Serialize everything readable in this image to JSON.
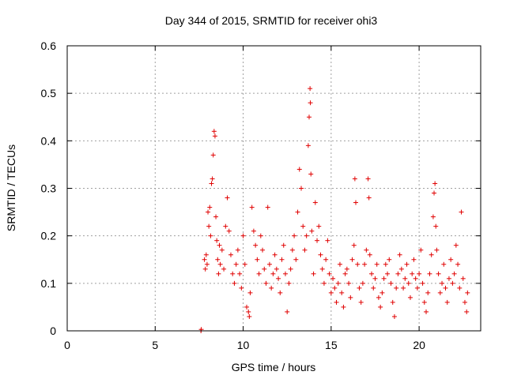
{
  "chart_data": {
    "type": "scatter",
    "title": "Day 344 of 2015, SRMTID for receiver ohi3",
    "xlabel": "GPS time / hours",
    "ylabel": "SRMTID / TECUs",
    "xlim": [
      0,
      23.5
    ],
    "ylim": [
      0,
      0.6
    ],
    "xticks": [
      0,
      5,
      10,
      15,
      20
    ],
    "yticks": [
      0,
      0.1,
      0.2,
      0.3,
      0.4,
      0.5,
      0.6
    ],
    "grid": true,
    "marker": "plus",
    "color": "#e00000",
    "series": [
      {
        "name": "SRMTID",
        "points": [
          [
            7.6,
            0.0
          ],
          [
            7.62,
            0.003
          ],
          [
            7.8,
            0.15
          ],
          [
            7.85,
            0.13
          ],
          [
            7.9,
            0.16
          ],
          [
            7.95,
            0.14
          ],
          [
            8.0,
            0.25
          ],
          [
            8.05,
            0.22
          ],
          [
            8.1,
            0.26
          ],
          [
            8.15,
            0.2
          ],
          [
            8.2,
            0.31
          ],
          [
            8.25,
            0.32
          ],
          [
            8.3,
            0.37
          ],
          [
            8.35,
            0.42
          ],
          [
            8.4,
            0.41
          ],
          [
            8.45,
            0.24
          ],
          [
            8.5,
            0.19
          ],
          [
            8.55,
            0.15
          ],
          [
            8.6,
            0.12
          ],
          [
            8.65,
            0.18
          ],
          [
            8.7,
            0.14
          ],
          [
            8.8,
            0.17
          ],
          [
            8.9,
            0.13
          ],
          [
            9.0,
            0.22
          ],
          [
            9.1,
            0.28
          ],
          [
            9.2,
            0.21
          ],
          [
            9.3,
            0.16
          ],
          [
            9.4,
            0.12
          ],
          [
            9.5,
            0.1
          ],
          [
            9.6,
            0.14
          ],
          [
            9.7,
            0.17
          ],
          [
            9.8,
            0.12
          ],
          [
            9.9,
            0.09
          ],
          [
            10.0,
            0.2
          ],
          [
            10.1,
            0.14
          ],
          [
            10.2,
            0.05
          ],
          [
            10.3,
            0.04
          ],
          [
            10.35,
            0.03
          ],
          [
            10.4,
            0.08
          ],
          [
            10.5,
            0.26
          ],
          [
            10.6,
            0.21
          ],
          [
            10.7,
            0.18
          ],
          [
            10.8,
            0.15
          ],
          [
            10.9,
            0.12
          ],
          [
            11.0,
            0.2
          ],
          [
            11.1,
            0.17
          ],
          [
            11.2,
            0.13
          ],
          [
            11.3,
            0.1
          ],
          [
            11.4,
            0.26
          ],
          [
            11.5,
            0.14
          ],
          [
            11.6,
            0.09
          ],
          [
            11.7,
            0.12
          ],
          [
            11.8,
            0.16
          ],
          [
            11.9,
            0.13
          ],
          [
            12.0,
            0.11
          ],
          [
            12.1,
            0.08
          ],
          [
            12.2,
            0.15
          ],
          [
            12.3,
            0.18
          ],
          [
            12.4,
            0.12
          ],
          [
            12.5,
            0.04
          ],
          [
            12.6,
            0.1
          ],
          [
            12.7,
            0.13
          ],
          [
            12.8,
            0.17
          ],
          [
            12.9,
            0.2
          ],
          [
            13.0,
            0.15
          ],
          [
            13.1,
            0.25
          ],
          [
            13.2,
            0.34
          ],
          [
            13.3,
            0.3
          ],
          [
            13.4,
            0.22
          ],
          [
            13.5,
            0.17
          ],
          [
            13.6,
            0.2
          ],
          [
            13.7,
            0.39
          ],
          [
            13.75,
            0.45
          ],
          [
            13.8,
            0.51
          ],
          [
            13.82,
            0.48
          ],
          [
            13.85,
            0.33
          ],
          [
            13.9,
            0.21
          ],
          [
            14.0,
            0.12
          ],
          [
            14.1,
            0.27
          ],
          [
            14.2,
            0.19
          ],
          [
            14.3,
            0.22
          ],
          [
            14.4,
            0.16
          ],
          [
            14.5,
            0.13
          ],
          [
            14.6,
            0.1
          ],
          [
            14.7,
            0.15
          ],
          [
            14.8,
            0.19
          ],
          [
            14.9,
            0.12
          ],
          [
            15.0,
            0.08
          ],
          [
            15.1,
            0.11
          ],
          [
            15.2,
            0.09
          ],
          [
            15.3,
            0.06
          ],
          [
            15.4,
            0.1
          ],
          [
            15.5,
            0.14
          ],
          [
            15.6,
            0.08
          ],
          [
            15.7,
            0.05
          ],
          [
            15.8,
            0.12
          ],
          [
            15.9,
            0.13
          ],
          [
            16.0,
            0.1
          ],
          [
            16.1,
            0.07
          ],
          [
            16.2,
            0.15
          ],
          [
            16.3,
            0.18
          ],
          [
            16.35,
            0.32
          ],
          [
            16.4,
            0.27
          ],
          [
            16.5,
            0.14
          ],
          [
            16.6,
            0.09
          ],
          [
            16.7,
            0.06
          ],
          [
            16.8,
            0.1
          ],
          [
            16.9,
            0.14
          ],
          [
            17.0,
            0.17
          ],
          [
            17.1,
            0.32
          ],
          [
            17.15,
            0.28
          ],
          [
            17.2,
            0.16
          ],
          [
            17.3,
            0.12
          ],
          [
            17.4,
            0.09
          ],
          [
            17.5,
            0.11
          ],
          [
            17.6,
            0.14
          ],
          [
            17.7,
            0.07
          ],
          [
            17.8,
            0.05
          ],
          [
            17.9,
            0.08
          ],
          [
            18.0,
            0.11
          ],
          [
            18.1,
            0.14
          ],
          [
            18.2,
            0.12
          ],
          [
            18.3,
            0.15
          ],
          [
            18.4,
            0.1
          ],
          [
            18.5,
            0.06
          ],
          [
            18.6,
            0.03
          ],
          [
            18.7,
            0.09
          ],
          [
            18.8,
            0.12
          ],
          [
            18.9,
            0.16
          ],
          [
            19.0,
            0.13
          ],
          [
            19.1,
            0.09
          ],
          [
            19.2,
            0.11
          ],
          [
            19.3,
            0.14
          ],
          [
            19.4,
            0.1
          ],
          [
            19.5,
            0.07
          ],
          [
            19.6,
            0.12
          ],
          [
            19.7,
            0.15
          ],
          [
            19.8,
            0.11
          ],
          [
            19.9,
            0.09
          ],
          [
            20.0,
            0.12
          ],
          [
            20.1,
            0.17
          ],
          [
            20.2,
            0.1
          ],
          [
            20.3,
            0.06
          ],
          [
            20.4,
            0.04
          ],
          [
            20.5,
            0.08
          ],
          [
            20.6,
            0.12
          ],
          [
            20.7,
            0.16
          ],
          [
            20.8,
            0.24
          ],
          [
            20.85,
            0.29
          ],
          [
            20.9,
            0.31
          ],
          [
            20.95,
            0.22
          ],
          [
            21.0,
            0.17
          ],
          [
            21.1,
            0.12
          ],
          [
            21.2,
            0.08
          ],
          [
            21.3,
            0.1
          ],
          [
            21.4,
            0.14
          ],
          [
            21.5,
            0.09
          ],
          [
            21.6,
            0.06
          ],
          [
            21.7,
            0.11
          ],
          [
            21.8,
            0.15
          ],
          [
            21.9,
            0.1
          ],
          [
            22.0,
            0.12
          ],
          [
            22.1,
            0.18
          ],
          [
            22.2,
            0.14
          ],
          [
            22.3,
            0.09
          ],
          [
            22.4,
            0.25
          ],
          [
            22.5,
            0.11
          ],
          [
            22.6,
            0.06
          ],
          [
            22.7,
            0.04
          ],
          [
            22.75,
            0.08
          ]
        ]
      }
    ]
  }
}
